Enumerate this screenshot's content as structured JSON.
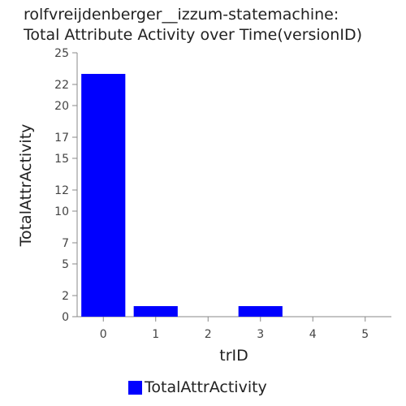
{
  "chart_data": {
    "type": "bar",
    "title_lines": [
      "rolfvreijdenberger__izzum-statemachine:",
      "Total Attribute Activity over Time(versionID)"
    ],
    "xlabel": "trID",
    "ylabel": "TotalAttrActivity",
    "categories": [
      "0",
      "1",
      "2",
      "3",
      "4",
      "5"
    ],
    "series": [
      {
        "name": "TotalAttrActivity",
        "values": [
          23,
          1,
          0,
          1,
          0,
          0
        ],
        "color": "#0000ff"
      }
    ],
    "y_ticks": [
      0,
      2,
      5,
      7,
      10,
      12,
      15,
      17,
      20,
      22,
      25
    ],
    "ylim": [
      0,
      25
    ],
    "grid": false,
    "legend_position": "bottom-center"
  }
}
